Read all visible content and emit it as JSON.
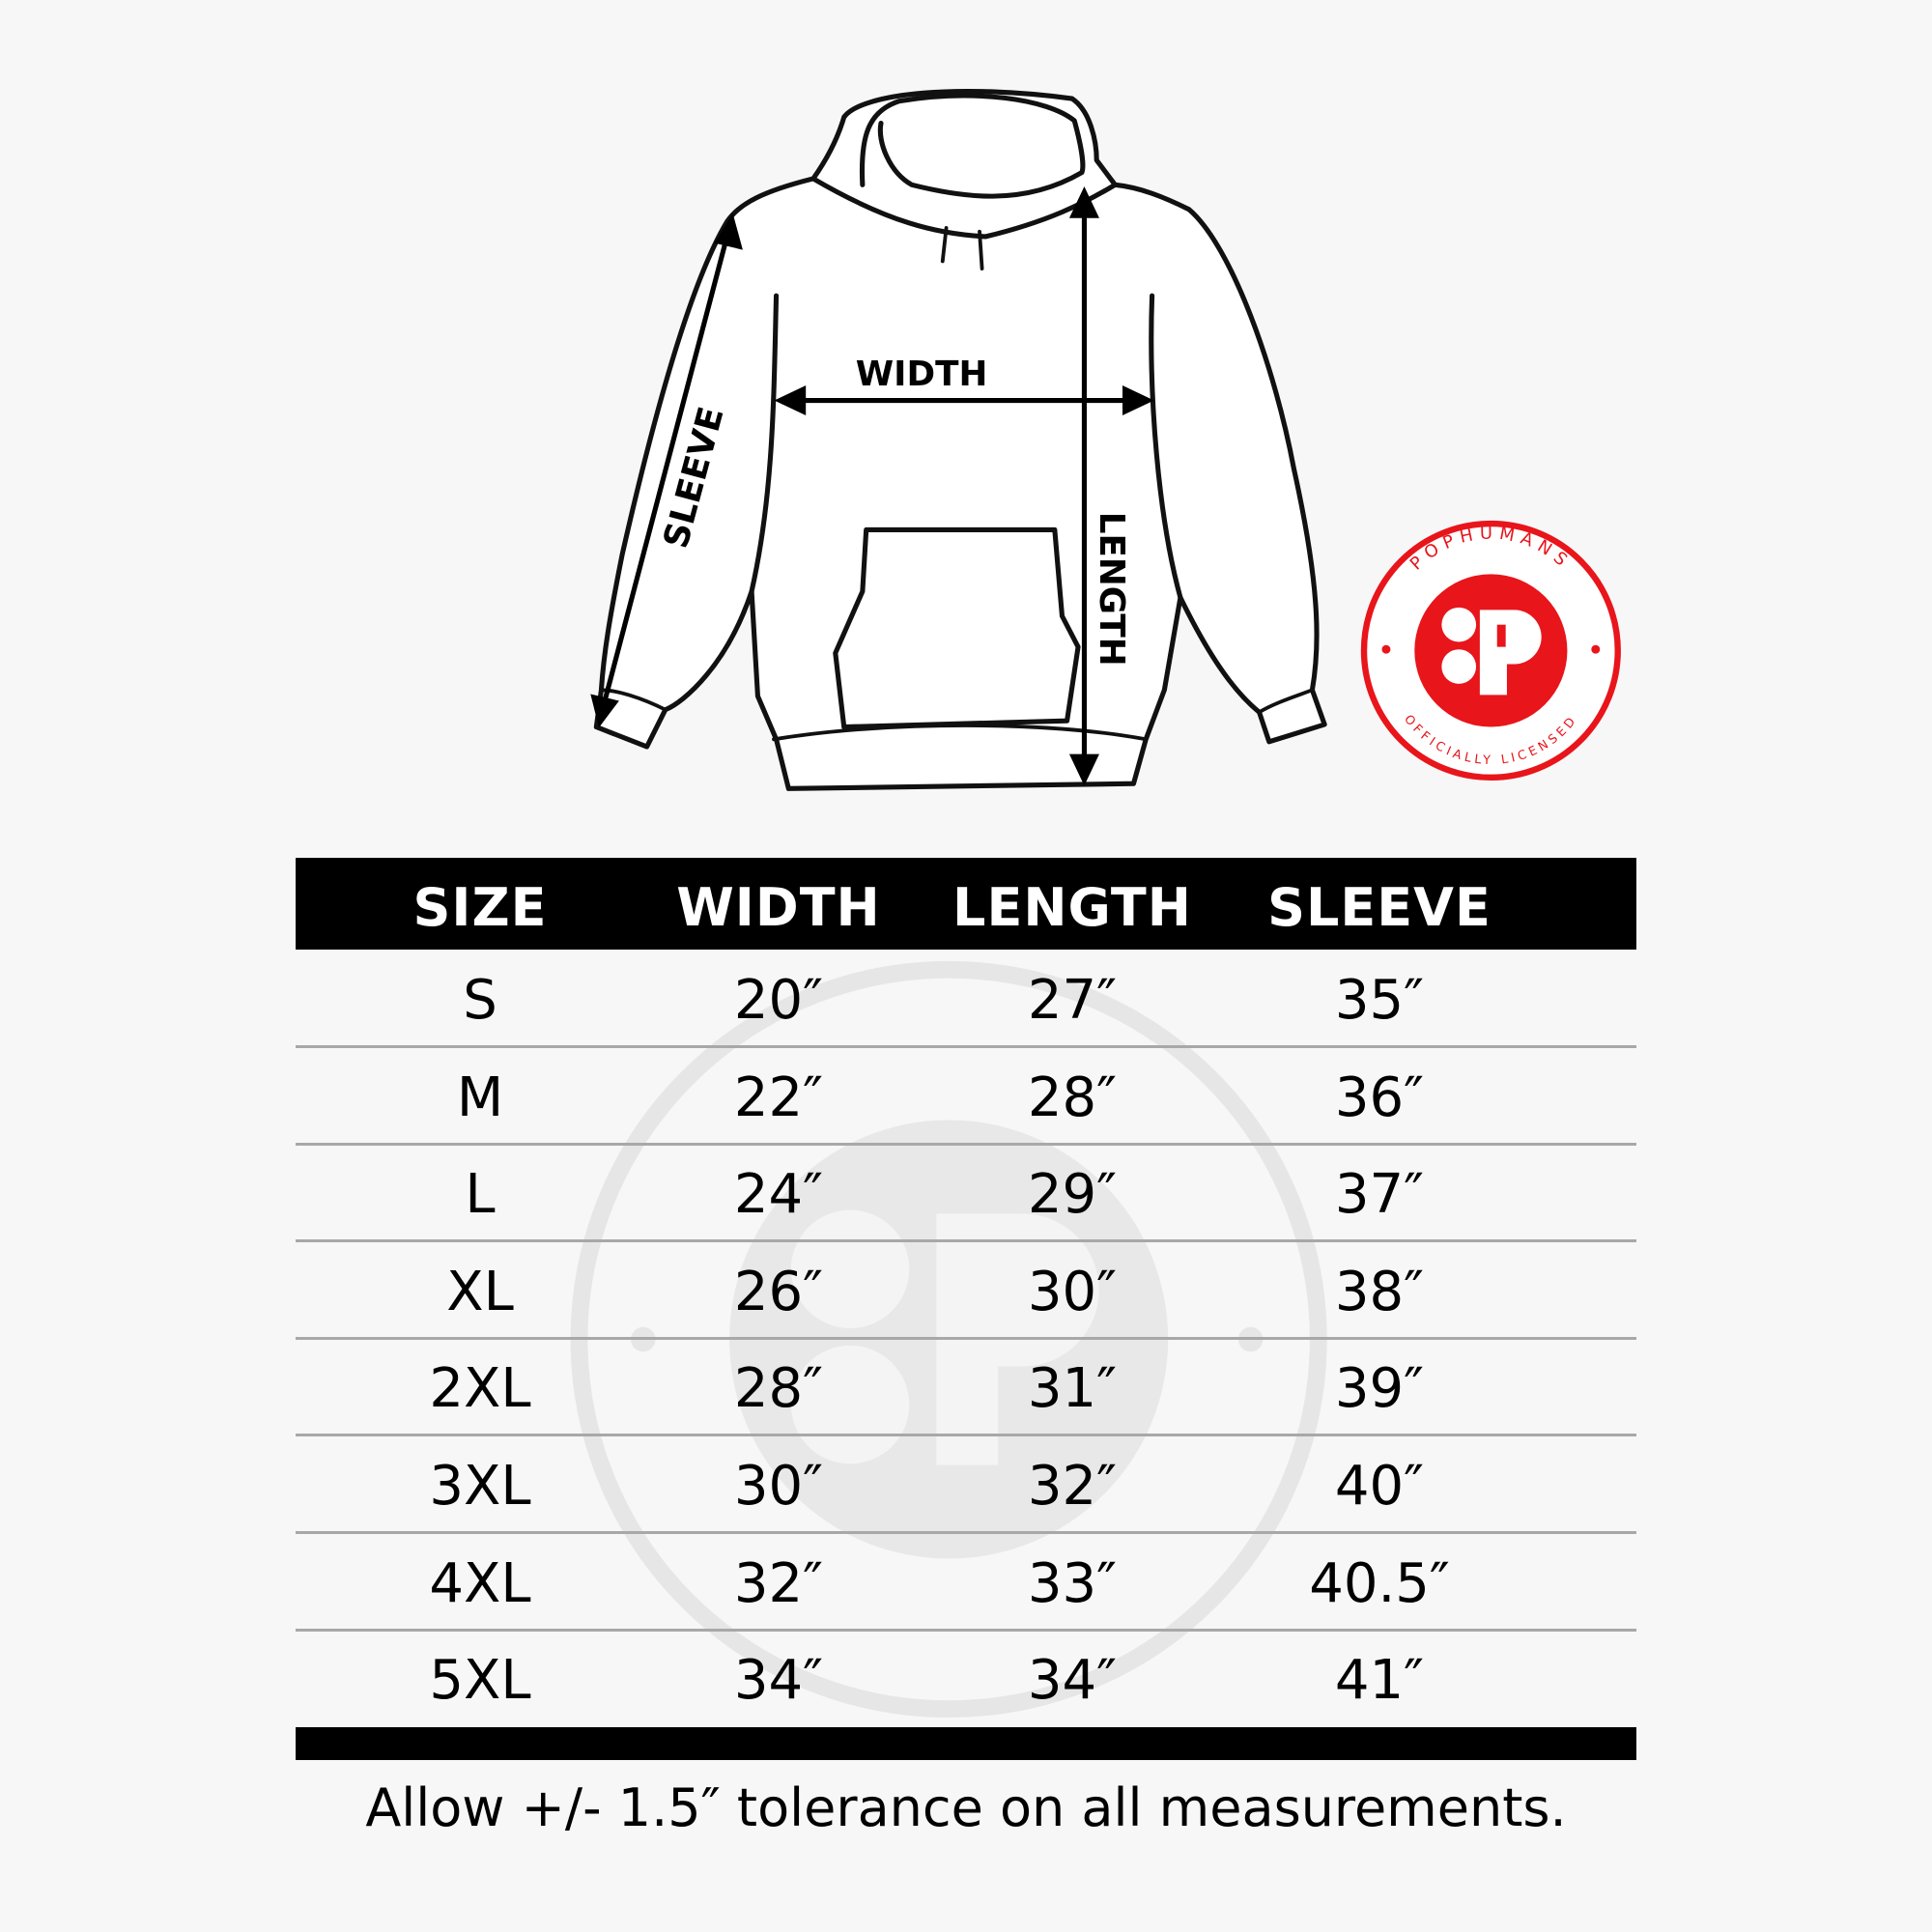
{
  "diagram": {
    "labels": {
      "width": "WIDTH",
      "length": "LENGTH",
      "sleeve": "SLEEVE"
    }
  },
  "logo": {
    "top_text": "POPHUMANS",
    "bottom_text": "OFFICIALLY LICENSED",
    "mark": "P",
    "color": "#e8151b"
  },
  "table": {
    "headers": [
      "SIZE",
      "WIDTH",
      "LENGTH",
      "SLEEVE"
    ],
    "rows": [
      [
        "S",
        "20″",
        "27″",
        "35″"
      ],
      [
        "M",
        "22″",
        "28″",
        "36″"
      ],
      [
        "L",
        "24″",
        "29″",
        "37″"
      ],
      [
        "XL",
        "26″",
        "30″",
        "38″"
      ],
      [
        "2XL",
        "28″",
        "31″",
        "39″"
      ],
      [
        "3XL",
        "30″",
        "32″",
        "40″"
      ],
      [
        "4XL",
        "32″",
        "33″",
        "40.5″"
      ],
      [
        "5XL",
        "34″",
        "34″",
        "41″"
      ]
    ]
  },
  "footer": "Allow +/- 1.5″ tolerance on all measurements."
}
